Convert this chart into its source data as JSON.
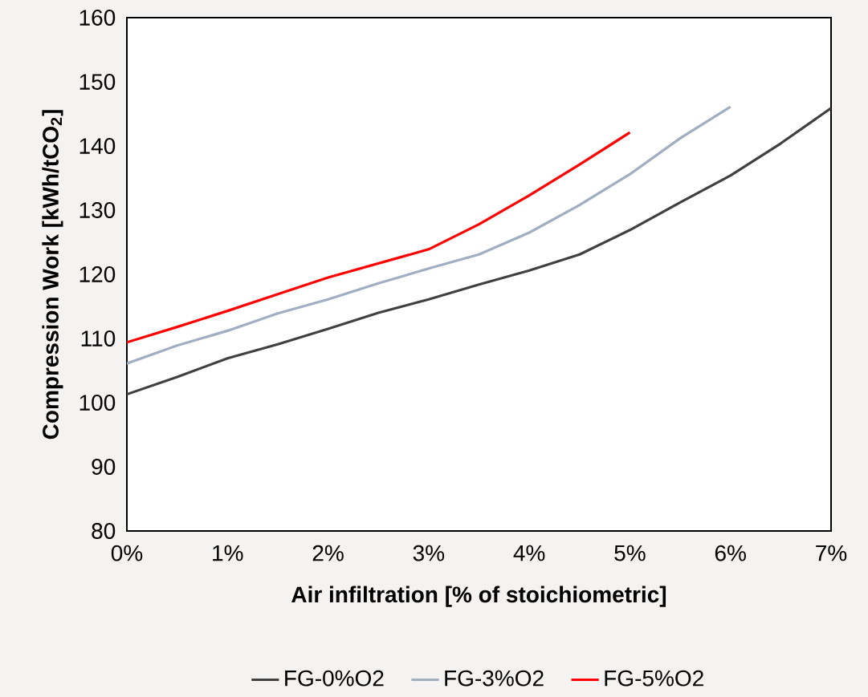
{
  "chart_data": {
    "type": "line",
    "xlabel": "Air infiltration [% of stoichiometric]",
    "ylabel": "Compression Work [kWh/tCO$_{2}$]",
    "x": [
      0,
      0.5,
      1,
      1.5,
      2,
      2.5,
      3,
      3.5,
      4,
      4.5,
      5,
      5.5,
      6,
      6.5,
      7
    ],
    "series": [
      {
        "name": "FG-0%O2",
        "color": "#404040",
        "values": [
          101.3,
          104.0,
          106.9,
          109.1,
          111.5,
          114.0,
          116.1,
          118.4,
          120.6,
          123.1,
          126.9,
          131.2,
          135.4,
          140.4,
          145.9
        ]
      },
      {
        "name": "FG-3%O2",
        "color": "#a0aec2",
        "values": [
          106.1,
          108.9,
          111.2,
          113.9,
          116.1,
          118.6,
          120.9,
          123.1,
          126.5,
          130.8,
          135.6,
          141.2,
          146.1,
          null,
          null
        ]
      },
      {
        "name": "FG-5%O2",
        "color": "#ff0000",
        "values": [
          109.4,
          111.8,
          114.3,
          116.9,
          119.5,
          121.7,
          123.9,
          127.8,
          132.3,
          137.1,
          142.1,
          null,
          null,
          null,
          null
        ]
      }
    ],
    "xlim": [
      0,
      7
    ],
    "xticks": [
      {
        "value": 0,
        "label": "0%"
      },
      {
        "value": 1,
        "label": "1%"
      },
      {
        "value": 2,
        "label": "2%"
      },
      {
        "value": 3,
        "label": "3%"
      },
      {
        "value": 4,
        "label": "4%"
      },
      {
        "value": 5,
        "label": "5%"
      },
      {
        "value": 6,
        "label": "6%"
      },
      {
        "value": 7,
        "label": "7%"
      }
    ],
    "ylim": [
      80,
      160
    ],
    "yticks": [
      80,
      90,
      100,
      110,
      120,
      130,
      140,
      150,
      160
    ],
    "grid": false,
    "legend": "bottom"
  }
}
